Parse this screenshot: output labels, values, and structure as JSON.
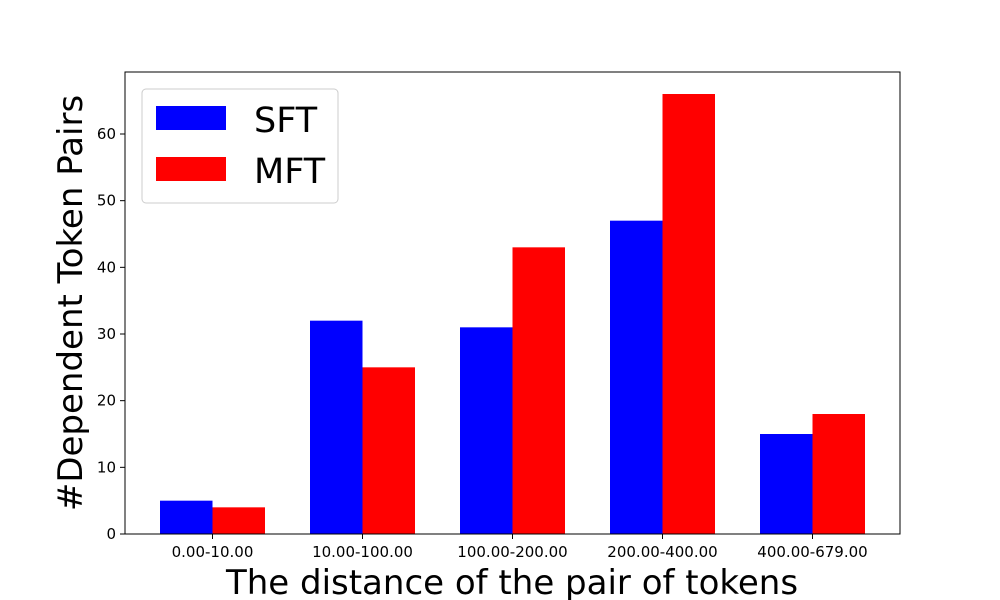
{
  "chart_data": {
    "type": "bar",
    "categories": [
      "0.00-10.00",
      "10.00-100.00",
      "100.00-200.00",
      "200.00-400.00",
      "400.00-679.00"
    ],
    "series": [
      {
        "name": "SFT",
        "color": "#0000ff",
        "values": [
          5,
          32,
          31,
          47,
          15
        ]
      },
      {
        "name": "MFT",
        "color": "#ff0000",
        "values": [
          4,
          25,
          43,
          66,
          18
        ]
      }
    ],
    "xlabel": "The distance of the pair of tokens",
    "ylabel": "#Dependent Token Pairs",
    "ylim": [
      0,
      69.3
    ],
    "yticks": [
      0,
      10,
      20,
      30,
      40,
      50,
      60
    ],
    "legend_position": "top-left",
    "grid": false
  }
}
